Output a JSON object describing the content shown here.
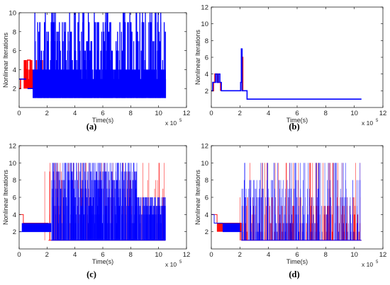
{
  "chart_data": [
    {
      "panel": "(a)",
      "type": "line",
      "xlabel": "Time(s)",
      "ylabel": "Nonlinear Iterations",
      "x_multiplier_label": "x 10",
      "x_multiplier_exponent": "5",
      "xlim": [
        0,
        12
      ],
      "ylim": [
        0,
        10
      ],
      "xticks": [
        0,
        2,
        4,
        6,
        8,
        10,
        12
      ],
      "yticks": [
        2,
        4,
        6,
        8,
        10
      ],
      "style": "thick",
      "series": [
        {
          "color": "#ff0000",
          "segments": [
            {
              "x": [
                0,
                0.1,
                0.2,
                0.3,
                0.4,
                0.5
              ],
              "y": [
                2,
                3,
                3,
                3,
                4,
                4
              ]
            },
            {
              "x": [
                0.4,
                0.5,
                0.6,
                0.7,
                0.8
              ],
              "y": [
                4,
                4,
                5,
                5,
                4
              ]
            }
          ],
          "spikes": {
            "xmin": 0.3,
            "xmax": 2.0,
            "count": 60,
            "low": 2,
            "levels": [
              3,
              4,
              5
            ],
            "seed": 11
          }
        },
        {
          "color": "#0000ff",
          "segments": [
            {
              "x": [
                0,
                0.5
              ],
              "y": [
                3,
                3
              ]
            },
            {
              "x": [
                0.6,
                10.5
              ],
              "y": [
                2,
                2
              ]
            }
          ],
          "band": {
            "xmin": 1.0,
            "xmax": 10.5,
            "low": 1,
            "high": 4,
            "count": 1400,
            "seed": 7
          },
          "spikes": {
            "xmin": 1.0,
            "xmax": 10.5,
            "count": 200,
            "low": 1,
            "levels": [
              5,
              6,
              7,
              8,
              9,
              10
            ],
            "seed": 3
          }
        }
      ]
    },
    {
      "panel": "(b)",
      "type": "line",
      "xlabel": "Time(s)",
      "ylabel": "Nonlinear Iterations",
      "x_multiplier_label": "x 10",
      "x_multiplier_exponent": "5",
      "xlim": [
        0,
        12
      ],
      "ylim": [
        0,
        12
      ],
      "xticks": [
        0,
        2,
        4,
        6,
        8,
        10,
        12
      ],
      "yticks": [
        2,
        4,
        6,
        8,
        10,
        12
      ],
      "style": "thick",
      "series": [
        {
          "color": "#ff0000",
          "segments": [
            {
              "x": [
                0,
                0.15,
                0.25,
                0.35,
                0.45,
                0.55,
                0.65
              ],
              "y": [
                2,
                3,
                4,
                4,
                3,
                3,
                2
              ]
            },
            {
              "x": [
                2.1,
                2.15,
                2.2
              ],
              "y": [
                3,
                6,
                2
              ]
            }
          ]
        },
        {
          "color": "#0000ff",
          "segments": [
            {
              "x": [
                0,
                0.1,
                0.2,
                0.3,
                0.4,
                0.5,
                0.6,
                0.7,
                2.0,
                2.05,
                2.1,
                2.15,
                2.2,
                2.3,
                2.4,
                2.5,
                10.5
              ],
              "y": [
                2,
                3,
                3,
                4,
                3,
                4,
                3,
                2,
                2,
                3,
                7,
                2,
                2,
                2,
                2,
                1,
                1
              ]
            }
          ]
        }
      ]
    },
    {
      "panel": "(c)",
      "type": "line",
      "xlabel": "Time(s)",
      "ylabel": "Nonlinear Iterations",
      "x_multiplier_label": "x 10",
      "x_multiplier_exponent": "5",
      "xlim": [
        0,
        12
      ],
      "ylim": [
        0,
        12
      ],
      "xticks": [
        0,
        2,
        4,
        6,
        8,
        10,
        12
      ],
      "yticks": [
        2,
        4,
        6,
        8,
        10,
        12
      ],
      "style": "thin",
      "series": [
        {
          "color": "#ff0000",
          "segments": [
            {
              "x": [
                0,
                0.3,
                0.3,
                2.1
              ],
              "y": [
                4,
                4,
                3,
                3
              ]
            },
            {
              "x": [
                2.1,
                10.5
              ],
              "y": [
                1,
                1
              ]
            }
          ],
          "band": {
            "xmin": 0.3,
            "xmax": 2.1,
            "low": 2,
            "high": 3,
            "count": 120,
            "seed": 21
          },
          "spikes": {
            "xmin": 1.8,
            "xmax": 10.5,
            "count": 120,
            "low": 1,
            "levels": [
              3,
              4,
              5,
              6,
              7,
              8,
              9,
              10
            ],
            "seed": 31
          }
        },
        {
          "color": "#0000ff",
          "segments": [
            {
              "x": [
                0,
                2.3
              ],
              "y": [
                2,
                2
              ]
            },
            {
              "x": [
                2.3,
                10.5
              ],
              "y": [
                1,
                1
              ]
            }
          ],
          "band": {
            "xmin": 0.2,
            "xmax": 2.3,
            "low": 2,
            "high": 3,
            "count": 260,
            "seed": 41
          },
          "spikes": {
            "xmin": 2.3,
            "xmax": 10.5,
            "count": 900,
            "low": 1,
            "levels": [
              3,
              4,
              5,
              6,
              7,
              8,
              9,
              10
            ],
            "seed": 51,
            "decay": true
          }
        }
      ]
    },
    {
      "panel": "(d)",
      "type": "line",
      "xlabel": "Time(s)",
      "ylabel": "Nonlinear Iterations",
      "x_multiplier_label": "x 10",
      "x_multiplier_exponent": "5",
      "xlim": [
        0,
        12
      ],
      "ylim": [
        0,
        12
      ],
      "xticks": [
        0,
        2,
        4,
        6,
        8,
        10,
        12
      ],
      "yticks": [
        2,
        4,
        6,
        8,
        10,
        12
      ],
      "style": "thin",
      "series": [
        {
          "color": "#ff0000",
          "segments": [
            {
              "x": [
                0,
                0.4,
                0.4,
                2.1
              ],
              "y": [
                4,
                4,
                3,
                3
              ]
            },
            {
              "x": [
                2.1,
                10.5
              ],
              "y": [
                1,
                1
              ]
            }
          ],
          "band": {
            "xmin": 0.4,
            "xmax": 2.1,
            "low": 2,
            "high": 3,
            "count": 100,
            "seed": 61
          },
          "spikes": {
            "xmin": 2.0,
            "xmax": 10.5,
            "count": 220,
            "low": 1,
            "levels": [
              2,
              3,
              3,
              4,
              5,
              6,
              10
            ],
            "seed": 71
          }
        },
        {
          "color": "#0000ff",
          "segments": [
            {
              "x": [
                0,
                0.2,
                0.2,
                0.8
              ],
              "y": [
                4,
                4,
                3,
                3
              ]
            },
            {
              "x": [
                0.8,
                2.1
              ],
              "y": [
                2,
                2
              ]
            },
            {
              "x": [
                2.1,
                10.5
              ],
              "y": [
                1,
                1
              ]
            }
          ],
          "band": {
            "xmin": 0.8,
            "xmax": 2.0,
            "low": 2,
            "high": 3,
            "count": 120,
            "seed": 81
          },
          "spikes": {
            "xmin": 2.1,
            "xmax": 10.5,
            "count": 260,
            "low": 1,
            "levels": [
              2,
              3,
              3,
              4,
              5,
              6,
              7,
              8,
              10
            ],
            "seed": 91
          }
        }
      ]
    }
  ]
}
